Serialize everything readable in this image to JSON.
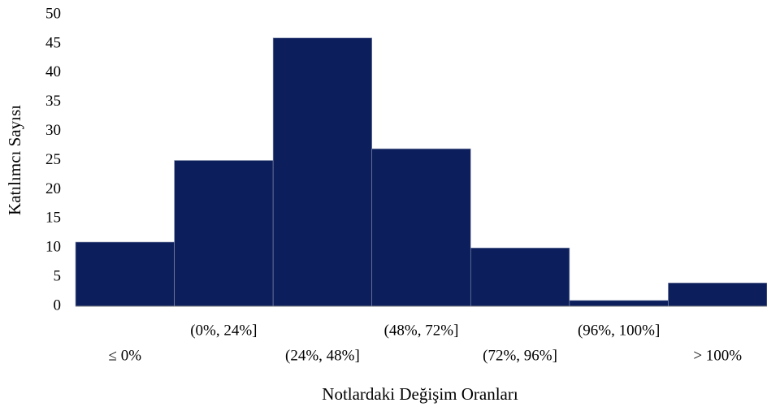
{
  "chart_data": {
    "type": "bar",
    "categories": [
      "≤ 0%",
      "(0%, 24%]",
      "(24%, 48%]",
      "(48%, 72%]",
      "(72%, 96%]",
      "(96%, 100%]",
      "> 100%"
    ],
    "values": [
      11,
      25,
      46,
      27,
      10,
      1,
      4
    ],
    "color": "#0c1f5c",
    "ylim": [
      0,
      50
    ],
    "yticks": [
      0,
      5,
      10,
      15,
      20,
      25,
      30,
      35,
      40,
      45,
      50
    ],
    "x_label": "Notlardaki Değişim Oranları",
    "y_label": "Katılımcı Sayısı",
    "grid": false
  }
}
